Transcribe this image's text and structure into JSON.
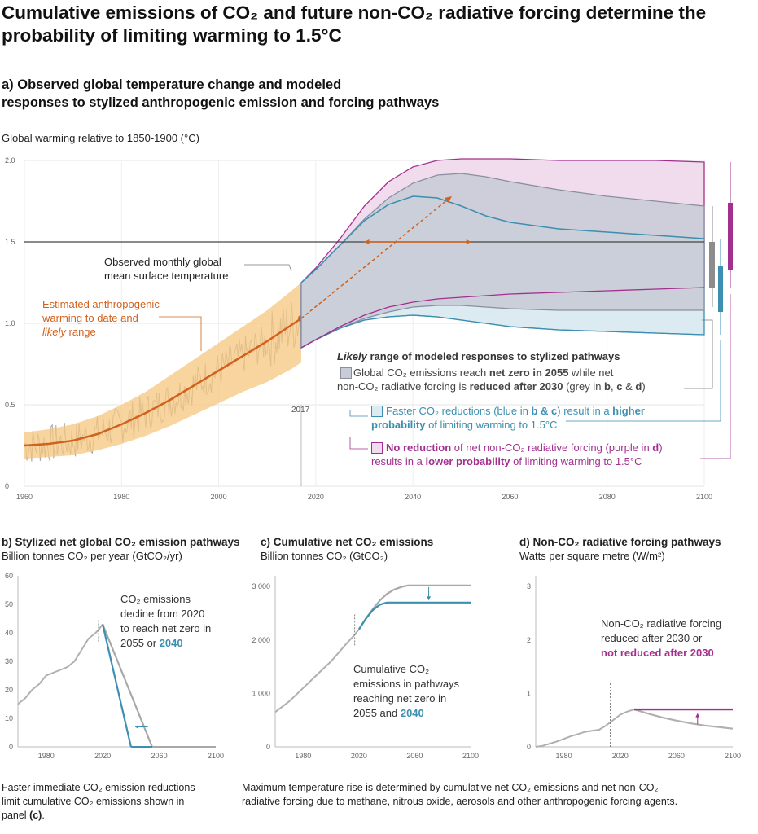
{
  "title": "Cumulative emissions of CO₂ and future non-CO₂ radiative forcing determine the probability of limiting warming to 1.5°C",
  "panel_a": {
    "title_line1": "a) Observed global temperature change and modeled",
    "title_line2": "responses to stylized anthropogenic emission and forcing pathways",
    "ylabel": "Global warming relative to 1850-1900 (°C)",
    "annotations": {
      "observed_line1": "Observed monthly global",
      "observed_line2": "mean surface temperature",
      "anthro_line1": "Estimated anthropogenic",
      "anthro_line2": "warming to date and",
      "anthro_line3_italic": "likely",
      "anthro_line3_rest": " range",
      "year_marker": "2017",
      "legend_head_italic": "Likely",
      "legend_head_rest": " range of modeled responses to stylized pathways",
      "grey_1a": "Global CO₂ emissions reach ",
      "grey_1b": "net zero in 2055",
      "grey_1c": " while net",
      "grey_2a": "non-CO₂ radiative forcing is ",
      "grey_2b": "reduced after 2030",
      "grey_2c": " (grey in ",
      "grey_2d": "b",
      "grey_2e": ", ",
      "grey_2f": "c",
      "grey_2g": " & ",
      "grey_2h": "d",
      "grey_2i": ")",
      "blue_1a": "Faster CO₂ reductions (blue in ",
      "blue_1b": "b & c",
      "blue_1c": ") result in a ",
      "blue_1d": "higher",
      "blue_2a": "probability",
      "blue_2b": " of limiting warming to 1.5°C",
      "purple_1a": "No reduction",
      "purple_1b": " of net non-CO₂ radiative forcing (purple in ",
      "purple_1c": "d",
      "purple_1d": ")",
      "purple_2a": "results in a ",
      "purple_2b": "lower probability",
      "purple_2c": " of limiting warming to 1.5°C"
    }
  },
  "panel_b": {
    "title": "b) Stylized net global CO₂ emission pathways",
    "unit": "Billion tonnes CO₂ per year (GtCO₂/yr)",
    "note_1": "CO₂ emissions",
    "note_2": "decline from 2020",
    "note_3": "to reach net zero in",
    "note_4a": "2055 or ",
    "note_4b": "2040"
  },
  "panel_c": {
    "title": "c) Cumulative net CO₂ emissions",
    "unit": "Billion tonnes CO₂ (GtCO₂)",
    "note_1": "Cumulative CO₂",
    "note_2": "emissions in pathways",
    "note_3": "reaching net zero in",
    "note_4a": "2055 and ",
    "note_4b": "2040"
  },
  "panel_d": {
    "title": "d) Non-CO₂ radiative forcing pathways",
    "unit": "Watts per square metre (W/m²)",
    "note_1": "Non-CO₂ radiative forcing",
    "note_2": "reduced after 2030 or",
    "note_3": "not reduced after 2030"
  },
  "footnotes": {
    "left_1": "Faster immediate CO₂ emission reductions",
    "left_2": "limit cumulative CO₂ emissions shown in",
    "left_3a": "panel ",
    "left_3b": "(c)",
    "left_3c": ".",
    "right_1": "Maximum temperature rise is determined by cumulative net CO₂ emissions and net non-CO₂",
    "right_2": "radiative forcing due to methane, nitrous oxide, aerosols and other anthropogenic forcing agents."
  },
  "colors": {
    "grey": "#8a8fa0",
    "grey_fill": "#c9ccd6",
    "blue": "#3b8fb0",
    "blue_fill": "#dcebf2",
    "purple": "#a3308f",
    "purple_fill": "#f1dcee",
    "orange": "#d2611d",
    "orange_fill": "#f6c67f",
    "observed": "#a8a8a8"
  },
  "chart_data": [
    {
      "id": "a",
      "type": "area",
      "ylabel": "Global warming relative to 1850-1900 (°C)",
      "xlim": [
        1960,
        2100
      ],
      "ylim": [
        0,
        2.0
      ],
      "xticks": [
        1960,
        1980,
        2000,
        2020,
        2040,
        2060,
        2080,
        2100
      ],
      "yticks": [
        0,
        0.5,
        1.0,
        1.5,
        2.0
      ],
      "reference_line": 1.5,
      "anthropogenic_warming": {
        "x": [
          1960,
          1965,
          1970,
          1975,
          1980,
          1985,
          1990,
          1995,
          2000,
          2005,
          2010,
          2015,
          2017
        ],
        "y": [
          0.25,
          0.26,
          0.28,
          0.32,
          0.38,
          0.45,
          0.53,
          0.62,
          0.71,
          0.8,
          0.89,
          0.99,
          1.03
        ],
        "lower": [
          0.17,
          0.18,
          0.19,
          0.22,
          0.26,
          0.31,
          0.37,
          0.44,
          0.51,
          0.58,
          0.64,
          0.72,
          0.76
        ],
        "upper": [
          0.33,
          0.35,
          0.38,
          0.43,
          0.5,
          0.58,
          0.68,
          0.78,
          0.88,
          0.98,
          1.08,
          1.2,
          1.25
        ]
      },
      "projection_x": [
        2017,
        2020,
        2025,
        2030,
        2035,
        2040,
        2045,
        2050,
        2055,
        2060,
        2070,
        2080,
        2090,
        2100
      ],
      "grey_range": {
        "lower": [
          0.85,
          0.9,
          0.97,
          1.03,
          1.07,
          1.1,
          1.11,
          1.11,
          1.1,
          1.09,
          1.08,
          1.08,
          1.08,
          1.08
        ],
        "upper": [
          1.25,
          1.33,
          1.48,
          1.64,
          1.77,
          1.86,
          1.91,
          1.92,
          1.9,
          1.87,
          1.82,
          1.78,
          1.75,
          1.72
        ]
      },
      "blue_range": {
        "lower": [
          0.85,
          0.9,
          0.97,
          1.02,
          1.04,
          1.05,
          1.04,
          1.02,
          1.0,
          0.98,
          0.96,
          0.95,
          0.94,
          0.93
        ],
        "upper": [
          1.25,
          1.33,
          1.48,
          1.63,
          1.73,
          1.78,
          1.77,
          1.72,
          1.66,
          1.62,
          1.58,
          1.56,
          1.54,
          1.52
        ]
      },
      "purple_range": {
        "lower": [
          0.85,
          0.9,
          0.98,
          1.05,
          1.1,
          1.13,
          1.15,
          1.16,
          1.17,
          1.18,
          1.19,
          1.2,
          1.21,
          1.22
        ],
        "upper": [
          1.25,
          1.34,
          1.52,
          1.72,
          1.87,
          1.96,
          2.0,
          2.01,
          2.01,
          2.01,
          2.0,
          2.0,
          2.0,
          1.99
        ]
      },
      "side_ranges": {
        "grey": [
          1.22,
          1.5,
          1.22,
          1.5
        ],
        "blue": [
          1.07,
          1.35
        ],
        "purple": [
          1.33,
          1.74
        ]
      }
    },
    {
      "id": "b",
      "type": "line",
      "xlim": [
        1960,
        2100
      ],
      "ylim": [
        0,
        60
      ],
      "xticks": [
        1980,
        2020,
        2060,
        2100
      ],
      "yticks": [
        0,
        10,
        20,
        30,
        40,
        50,
        60
      ],
      "observed": {
        "x": [
          1960,
          1965,
          1970,
          1975,
          1980,
          1985,
          1990,
          1995,
          2000,
          2005,
          2010,
          2015,
          2017,
          2020
        ],
        "y": [
          15,
          17,
          20,
          22,
          25,
          26,
          27,
          28,
          30,
          34,
          38,
          40,
          41,
          43
        ]
      },
      "grey_pathway": {
        "x": [
          2020,
          2055
        ],
        "y": [
          43,
          0
        ]
      },
      "blue_pathway": {
        "x": [
          2020,
          2040
        ],
        "y": [
          43,
          0
        ]
      }
    },
    {
      "id": "c",
      "type": "line",
      "xlim": [
        1960,
        2100
      ],
      "ylim": [
        0,
        3200
      ],
      "xticks": [
        1980,
        2020,
        2060,
        2100
      ],
      "yticks": [
        0,
        1000,
        2000,
        3000
      ],
      "ytick_labels": [
        "0",
        "1 000",
        "2 000",
        "3 000"
      ],
      "historical": {
        "x": [
          1960,
          1970,
          1980,
          1990,
          2000,
          2010,
          2017,
          2020
        ],
        "y": [
          650,
          850,
          1100,
          1350,
          1600,
          1900,
          2100,
          2200
        ]
      },
      "grey_pathway": {
        "x": [
          2020,
          2025,
          2030,
          2035,
          2040,
          2045,
          2050,
          2055,
          2100
        ],
        "y": [
          2200,
          2400,
          2580,
          2740,
          2860,
          2940,
          2990,
          3020,
          3020
        ]
      },
      "blue_pathway": {
        "x": [
          2020,
          2025,
          2030,
          2035,
          2040,
          2100
        ],
        "y": [
          2200,
          2400,
          2560,
          2660,
          2700,
          2700
        ]
      }
    },
    {
      "id": "d",
      "type": "line",
      "xlim": [
        1960,
        2100
      ],
      "ylim": [
        0,
        3.2
      ],
      "xticks": [
        1980,
        2020,
        2060,
        2100
      ],
      "yticks": [
        0,
        1,
        2,
        3
      ],
      "historical": {
        "x": [
          1960,
          1965,
          1970,
          1975,
          1980,
          1985,
          1990,
          1995,
          2000,
          2005,
          2010,
          2015,
          2020,
          2025,
          2030
        ],
        "y": [
          0.0,
          0.02,
          0.06,
          0.1,
          0.15,
          0.2,
          0.24,
          0.28,
          0.3,
          0.32,
          0.4,
          0.5,
          0.6,
          0.66,
          0.7
        ]
      },
      "grey_pathway": {
        "x": [
          2030,
          2040,
          2050,
          2060,
          2070,
          2080,
          2090,
          2100
        ],
        "y": [
          0.7,
          0.62,
          0.55,
          0.49,
          0.44,
          0.4,
          0.37,
          0.34
        ]
      },
      "purple_pathway": {
        "x": [
          2030,
          2100
        ],
        "y": [
          0.7,
          0.7
        ]
      }
    }
  ]
}
